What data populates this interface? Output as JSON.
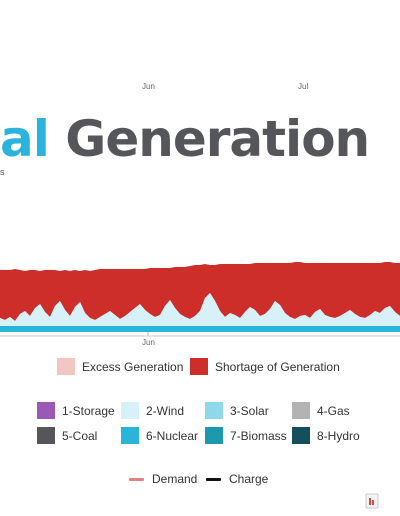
{
  "title": {
    "accent": "al",
    "rest": " Generation"
  },
  "subtitle": "s",
  "chart_data": {
    "type": "area",
    "x_ticks_top": [
      "Jun",
      "Jul"
    ],
    "x_ticks_bottom": [
      "Jun"
    ],
    "x": [
      0,
      1,
      2,
      3,
      4,
      5,
      6,
      7,
      8,
      9,
      10,
      11,
      12,
      13,
      14,
      15,
      16,
      17,
      18,
      19,
      20,
      21,
      22,
      23,
      24,
      25,
      26,
      27,
      28,
      29,
      30,
      31,
      32,
      33,
      34,
      35,
      36,
      37,
      38,
      39,
      40,
      41,
      42,
      43,
      44,
      45,
      46,
      47,
      48,
      49,
      50,
      51,
      52,
      53,
      54,
      55,
      56,
      57,
      58,
      59,
      60,
      61,
      62,
      63,
      64,
      65,
      66,
      67,
      68,
      69,
      70,
      71,
      72,
      73,
      74,
      75,
      76,
      77,
      78,
      79,
      80
    ],
    "series": [
      {
        "name": "6-Nuclear",
        "color": "#29b5d9",
        "values": [
          6,
          6,
          6,
          6,
          6,
          6,
          6,
          6,
          6,
          6,
          6,
          6,
          6,
          6,
          6,
          6,
          6,
          6,
          6,
          6,
          6,
          6,
          6,
          6,
          6,
          6,
          6,
          6,
          6,
          6,
          6,
          6,
          6,
          6,
          6,
          6,
          6,
          6,
          6,
          6,
          6,
          6,
          6,
          6,
          6,
          6,
          6,
          6,
          6,
          6,
          6,
          6,
          6,
          6,
          6,
          6,
          6,
          6,
          6,
          6,
          6,
          6,
          6,
          6,
          6,
          6,
          6,
          6,
          6,
          6,
          6,
          6,
          6,
          6,
          6,
          6,
          6,
          6,
          6,
          6,
          6
        ]
      },
      {
        "name": "2-Wind",
        "color": "#d6f2f8",
        "values": [
          8,
          6,
          9,
          5,
          12,
          15,
          10,
          18,
          22,
          14,
          9,
          20,
          25,
          16,
          10,
          19,
          24,
          13,
          8,
          6,
          9,
          12,
          15,
          11,
          7,
          10,
          14,
          18,
          22,
          16,
          12,
          9,
          11,
          20,
          26,
          18,
          12,
          9,
          7,
          10,
          15,
          28,
          33,
          25,
          15,
          9,
          13,
          11,
          8,
          14,
          19,
          16,
          10,
          12,
          17,
          25,
          21,
          13,
          9,
          7,
          10,
          11,
          8,
          14,
          17,
          11,
          9,
          8,
          10,
          13,
          16,
          12,
          9,
          8,
          11,
          15,
          13,
          18,
          20,
          14,
          10
        ]
      },
      {
        "name": "Shortage of Generation",
        "color": "#cd2e2a",
        "values": [
          48,
          50,
          47,
          52,
          44,
          40,
          46,
          38,
          33,
          42,
          47,
          36,
          30,
          40,
          45,
          37,
          31,
          43,
          47,
          50,
          48,
          45,
          42,
          46,
          50,
          47,
          43,
          39,
          35,
          41,
          46,
          49,
          47,
          38,
          32,
          41,
          47,
          50,
          53,
          51,
          46,
          34,
          28,
          36,
          47,
          53,
          49,
          51,
          54,
          48,
          43,
          47,
          53,
          51,
          46,
          38,
          42,
          50,
          54,
          57,
          54,
          52,
          55,
          49,
          46,
          52,
          54,
          55,
          53,
          50,
          47,
          51,
          54,
          55,
          52,
          48,
          50,
          46,
          44,
          49,
          53
        ]
      }
    ],
    "legend": {
      "area_items": [
        {
          "name": "Excess Generation",
          "color": "#f2c6c3"
        },
        {
          "name": "Shortage of Generation",
          "color": "#cd2e2a"
        }
      ],
      "fuel_items": [
        {
          "name": "1-Storage",
          "color": "#9b59b6"
        },
        {
          "name": "2-Wind",
          "color": "#d6f2f8"
        },
        {
          "name": "3-Solar",
          "color": "#8fd8ec"
        },
        {
          "name": "4-Gas",
          "color": "#b3b3b3"
        },
        {
          "name": "5-Coal",
          "color": "#56565a"
        },
        {
          "name": "6-Nuclear",
          "color": "#29b5d9"
        },
        {
          "name": "7-Biomass",
          "color": "#1d98ad"
        },
        {
          "name": "8-Hydro",
          "color": "#144f5c"
        }
      ],
      "line_items": [
        {
          "name": "Demand",
          "color": "#e0837f"
        },
        {
          "name": "Charge",
          "color": "#111111"
        }
      ]
    }
  }
}
